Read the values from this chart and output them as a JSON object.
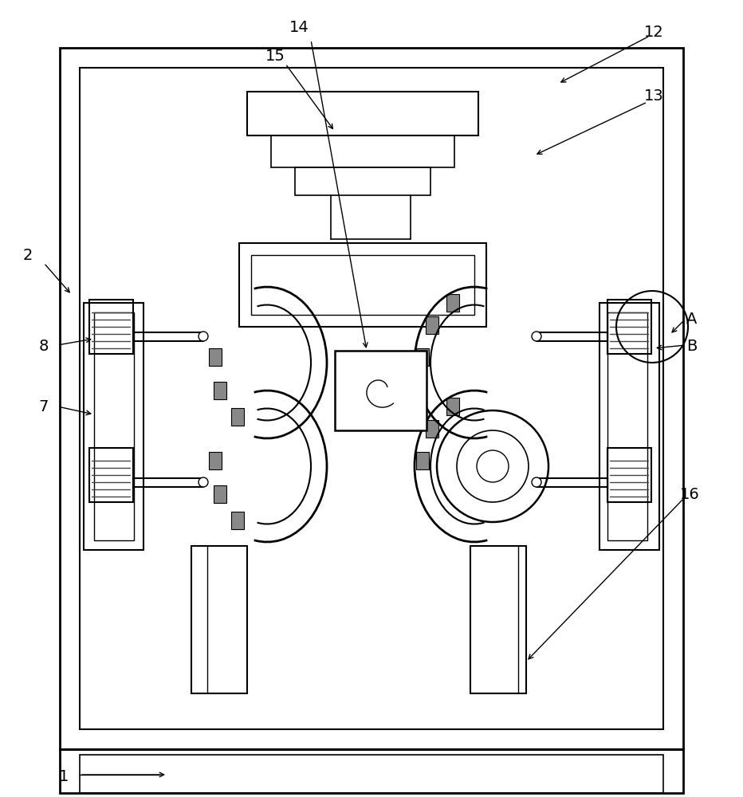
{
  "bg_color": "#ffffff",
  "line_color": "#000000",
  "fig_width": 9.32,
  "fig_height": 10.0
}
